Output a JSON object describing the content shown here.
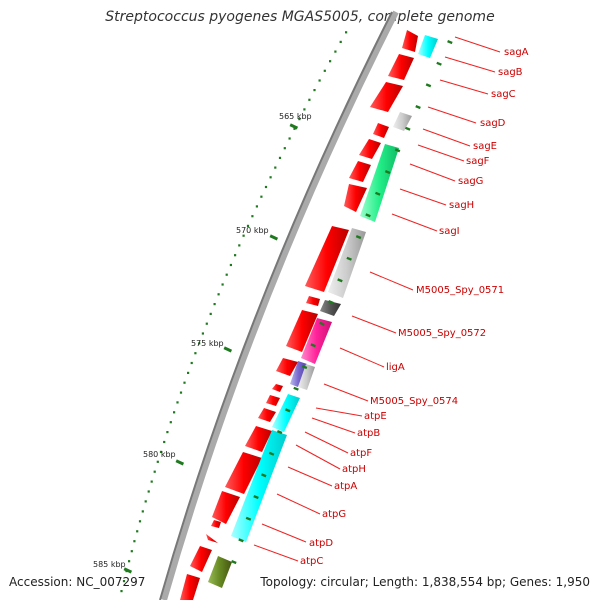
{
  "title": "Streptococcus pyogenes MGAS5005, complete genome",
  "footer": {
    "accession": "Accession: NC_007297",
    "topology": "Topology: circular; Length: 1,838,554 bp; Genes: 1,950"
  },
  "ruler": [
    "565 kbp",
    "570 kbp",
    "575 kbp",
    "580 kbp",
    "585 kbp"
  ],
  "genes": [
    "sagA",
    "sagB",
    "sagC",
    "sagD",
    "sagE",
    "sagF",
    "sagG",
    "sagH",
    "sagI",
    "M5005_Spy_0571",
    "M5005_Spy_0572",
    "ligA",
    "M5005_Spy_0574",
    "atpE",
    "atpB",
    "atpF",
    "atpH",
    "atpA",
    "atpG",
    "atpD",
    "atpC"
  ],
  "colors": {
    "forward_gene": "#ff0000",
    "backbone": "#888888",
    "tick": "#1f7a1f",
    "label": "#cc0000",
    "cog_cyan": "#00ffff",
    "cog_green": "#33ff99",
    "cog_grey": "#cccccc",
    "cog_darkgrey": "#555555",
    "cog_magenta": "#ff33aa",
    "cog_purple": "#8877cc",
    "cog_olive": "#668822"
  }
}
